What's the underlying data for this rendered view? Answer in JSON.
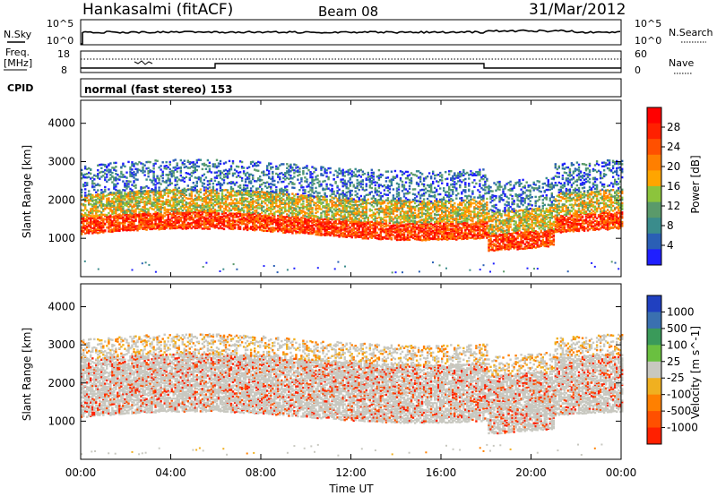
{
  "header": {
    "station": "Hankasalmi (fitACF)",
    "beam": "Beam 08",
    "date": "31/Mar/2012"
  },
  "top_panels": {
    "nsky_label": "N.Sky",
    "nsky_top": "10^5",
    "nsky_bottom": "10^0",
    "nsearch_label": "N.Search",
    "nsearch_top": "10^5",
    "nsearch_bottom": "10^0",
    "freq_label_1": "Freq.",
    "freq_label_2": "[MHz]",
    "freq_top": "18",
    "freq_bottom": "8",
    "nave_label": "Nave",
    "nave_top": "60",
    "nave_bottom": "0",
    "cpid_label": "CPID",
    "cpid_text": "normal (fast stereo) 153"
  },
  "time_axis": {
    "label": "Time UT",
    "ticks": [
      "00:00",
      "04:00",
      "08:00",
      "12:00",
      "16:00",
      "20:00",
      "00:00"
    ]
  },
  "chart_data": [
    {
      "type": "heatmap",
      "name": "power",
      "ylabel": "Slant Range [km]",
      "yticks": [
        "1000",
        "2000",
        "3000",
        "4000"
      ],
      "ylim": [
        0,
        4600
      ],
      "xlim_hours": [
        0,
        24
      ],
      "colorbar_label": "Power [dB]",
      "colorbar_ticks": [
        "4",
        "8",
        "12",
        "16",
        "20",
        "24",
        "28"
      ],
      "colorbar_colors": [
        "#1f1fff",
        "#2a5fb5",
        "#3a8c8c",
        "#5a9a6a",
        "#8cc43c",
        "#ffa500",
        "#ff7f00",
        "#ff5000",
        "#ff2000",
        "#ff0000"
      ],
      "scatter_bands": [
        {
          "t0": 0.0,
          "t1": 24.0,
          "r0": 1100,
          "r1": 1550,
          "level": "high"
        },
        {
          "t0": 0.0,
          "t1": 24.0,
          "r0": 1550,
          "r1": 2100,
          "level": "mid"
        },
        {
          "t0": 0.0,
          "t1": 24.0,
          "r0": 2100,
          "r1": 2900,
          "level": "low"
        }
      ]
    },
    {
      "type": "heatmap",
      "name": "velocity",
      "ylabel": "Slant Range [km]",
      "yticks": [
        "1000",
        "2000",
        "3000",
        "4000"
      ],
      "ylim": [
        0,
        4600
      ],
      "xlim_hours": [
        0,
        24
      ],
      "colorbar_label": "Velocity [m s^-1]",
      "colorbar_ticks": [
        "1000",
        "500",
        "100",
        "25",
        "-25",
        "-100",
        "-500",
        "-1000"
      ],
      "colorbar_colors": [
        "#2040c0",
        "#3a70b0",
        "#3a9a5a",
        "#6ac040",
        "#c8c8c0",
        "#f0b020",
        "#ff8000",
        "#ff5000",
        "#ff2000"
      ],
      "scatter_bands": [
        {
          "t0": 0.0,
          "t1": 24.0,
          "r0": 1100,
          "r1": 2600,
          "level": "ground"
        },
        {
          "t0": 0.0,
          "t1": 24.0,
          "r0": 2600,
          "r1": 3100,
          "level": "low"
        }
      ]
    }
  ]
}
